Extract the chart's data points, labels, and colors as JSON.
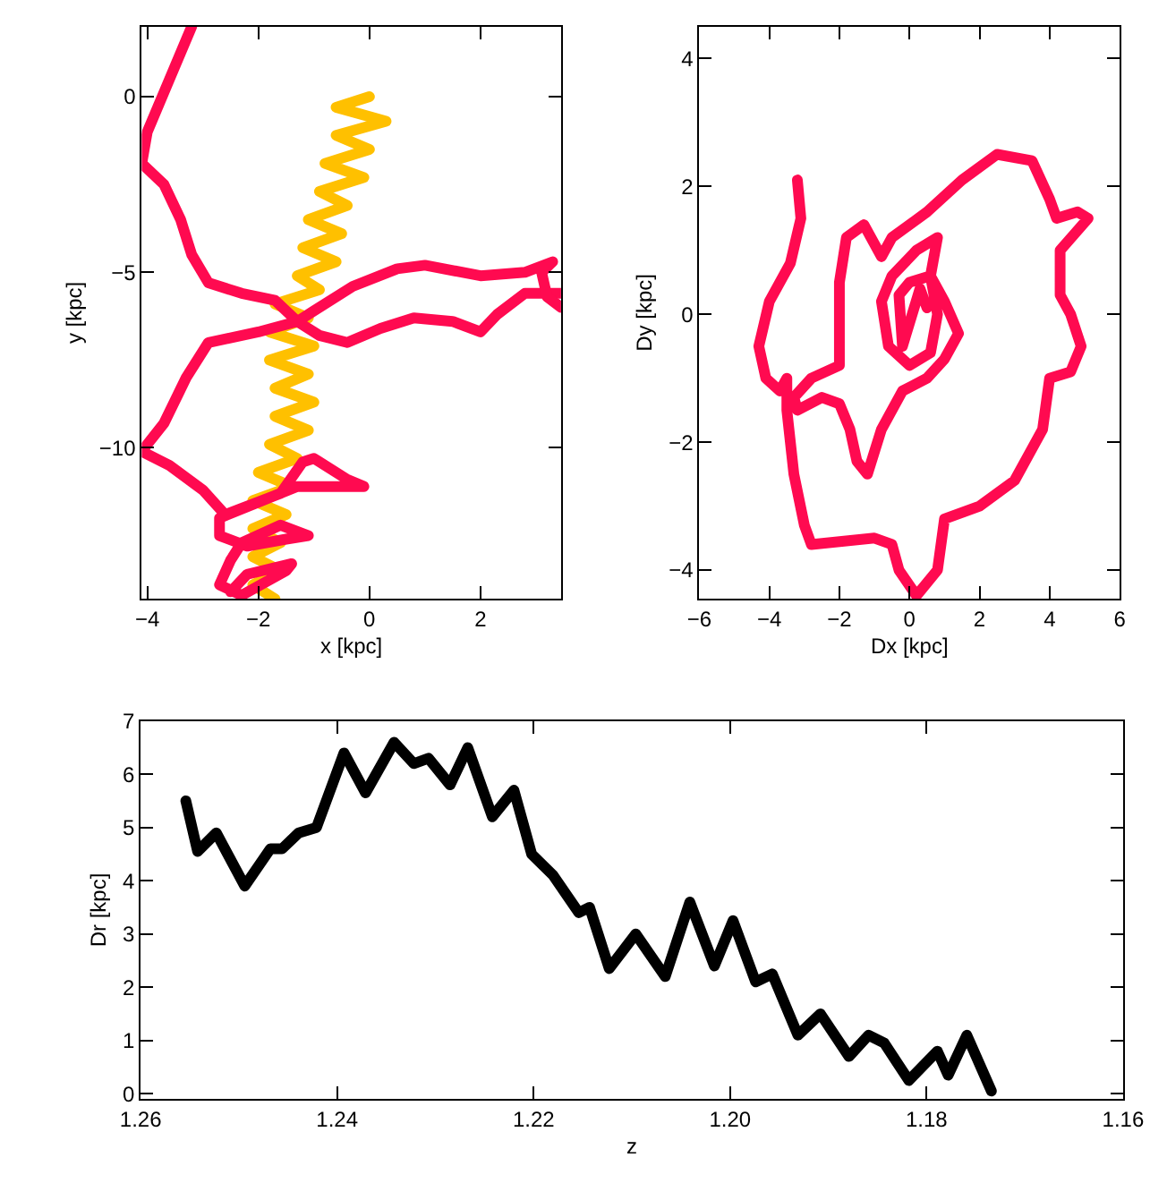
{
  "chart_data": [
    {
      "type": "line",
      "xlabel": "x [kpc]",
      "ylabel": "y [kpc]",
      "xlim": [
        -4.1,
        3.45
      ],
      "ylim": [
        -14.3,
        2.0
      ],
      "xticks": [
        -4,
        -2,
        0,
        2
      ],
      "yticks": [
        -10,
        -5,
        0
      ],
      "series": [
        {
          "color": "#ffc000",
          "x": [
            0.0,
            -0.6,
            0.3,
            -0.6,
            0.0,
            -0.8,
            -0.1,
            -0.9,
            -0.4,
            -1.1,
            -0.5,
            -1.2,
            -0.6,
            -1.3,
            -0.9,
            -1.7,
            -1.1,
            -1.8,
            -1.0,
            -1.8,
            -1.1,
            -1.7,
            -1.0,
            -1.7,
            -1.1,
            -1.8,
            -1.3,
            -2.0,
            -1.4,
            -2.1,
            -1.5,
            -2.1,
            -1.6,
            -2.1,
            -1.6,
            -2.1,
            -1.7
          ],
          "values": [
            0.0,
            -0.3,
            -0.7,
            -1.1,
            -1.5,
            -1.9,
            -2.3,
            -2.7,
            -3.1,
            -3.5,
            -3.9,
            -4.3,
            -4.7,
            -5.1,
            -5.5,
            -5.9,
            -6.3,
            -6.7,
            -7.1,
            -7.5,
            -7.9,
            -8.3,
            -8.7,
            -9.1,
            -9.5,
            -9.9,
            -10.3,
            -10.7,
            -11.1,
            -11.5,
            -11.9,
            -12.3,
            -12.7,
            -13.1,
            -13.5,
            -13.9,
            -14.3
          ]
        },
        {
          "color": "#ff0a50",
          "x": [
            -3.2,
            -3.6,
            -4.0,
            -4.1,
            -3.7,
            -3.4,
            -3.2,
            -2.9,
            -2.3,
            -1.7,
            -1.3,
            -0.9,
            -0.4,
            0.2,
            0.8,
            1.5,
            2.0,
            2.3,
            2.8,
            3.45,
            null,
            3.45,
            3.2,
            3.1,
            3.3,
            2.8,
            2.0,
            1.0,
            0.5,
            -0.3,
            -1.0,
            -1.3,
            -2.0,
            -2.9,
            -3.3,
            -3.7,
            -4.1,
            -3.6,
            -3.0,
            -2.6,
            -1.6,
            -1.2,
            -1.0,
            -0.4,
            -0.1,
            -1.3,
            -2.7,
            -2.7,
            -2.2,
            -1.5,
            -1.1,
            -1.6,
            -2.3,
            -2.5,
            -2.7,
            -2.3,
            -1.5,
            -1.4,
            -2.2,
            -2.5
          ],
          "values": [
            2.0,
            0.5,
            -1.0,
            -1.9,
            -2.5,
            -3.5,
            -4.5,
            -5.3,
            -5.6,
            -5.8,
            -6.4,
            -6.8,
            -7.0,
            -6.6,
            -6.3,
            -6.4,
            -6.7,
            -6.2,
            -5.6,
            -5.6,
            null,
            -6.0,
            -5.7,
            -5.0,
            -4.7,
            -5.0,
            -5.1,
            -4.8,
            -4.9,
            -5.4,
            -6.1,
            -6.4,
            -6.7,
            -7.0,
            -8.0,
            -9.3,
            -10.1,
            -10.5,
            -11.2,
            -11.9,
            -11.3,
            -10.4,
            -10.3,
            -10.9,
            -11.1,
            -11.1,
            -12.0,
            -12.5,
            -12.8,
            -12.6,
            -12.5,
            -12.2,
            -12.7,
            -13.2,
            -13.9,
            -14.2,
            -13.5,
            -13.3,
            -13.6,
            -14.1
          ]
        }
      ]
    },
    {
      "type": "line",
      "xlabel": "Dx [kpc]",
      "ylabel": "Dy [kpc]",
      "xlim": [
        -6,
        6
      ],
      "ylim": [
        -4.45,
        4.5
      ],
      "xticks": [
        -6,
        -4,
        -2,
        0,
        2,
        4,
        6
      ],
      "yticks": [
        -4,
        -2,
        0,
        2,
        4
      ],
      "series": [
        {
          "color": "#ff0a50",
          "x": [
            -3.2,
            -3.1,
            -3.4,
            -4.0,
            -4.3,
            -4.1,
            -3.7,
            -3.5,
            -3.5,
            -3.3,
            -3.0,
            -2.8,
            -1.0,
            -0.5,
            -0.3,
            0.2,
            0.8,
            1.0,
            2.0,
            3.0,
            3.8,
            4.0,
            4.6,
            4.9,
            4.6,
            4.3,
            4.3,
            5.1,
            4.8,
            4.2,
            4.0,
            3.5,
            2.5,
            1.5,
            0.5,
            -0.5,
            -0.8,
            -1.3,
            -1.8,
            -2.0,
            -2.0,
            -2.0,
            -2.8,
            -3.3,
            -3.2,
            -2.5,
            -2.0,
            -1.7,
            -1.5,
            -1.2,
            -0.8,
            -0.2,
            0.5,
            1.0,
            1.4,
            1.0,
            0.6,
            0.8,
            0.2,
            -0.5,
            -0.8,
            -0.6,
            0.0,
            0.6,
            0.8,
            0.6,
            0.0,
            -0.3,
            -0.2,
            0.3,
            0.5
          ],
          "values": [
            2.1,
            1.5,
            0.8,
            0.2,
            -0.5,
            -1.0,
            -1.2,
            -1.0,
            -1.5,
            -2.5,
            -3.3,
            -3.6,
            -3.5,
            -3.6,
            -4.0,
            -4.4,
            -4.0,
            -3.2,
            -3.0,
            -2.6,
            -1.8,
            -1.0,
            -0.9,
            -0.5,
            0.0,
            0.3,
            1.0,
            1.5,
            1.6,
            1.5,
            1.8,
            2.4,
            2.5,
            2.1,
            1.6,
            1.2,
            0.9,
            1.4,
            1.2,
            0.5,
            -0.3,
            -0.8,
            -1.0,
            -1.3,
            -1.5,
            -1.3,
            -1.4,
            -1.8,
            -2.3,
            -2.5,
            -1.8,
            -1.2,
            -1.0,
            -0.7,
            -0.3,
            0.2,
            0.6,
            1.2,
            1.0,
            0.6,
            0.2,
            -0.5,
            -0.8,
            -0.6,
            0.0,
            0.6,
            0.5,
            0.3,
            -0.5,
            0.4,
            0.1
          ]
        }
      ]
    },
    {
      "type": "line",
      "xlabel": "z",
      "ylabel": "Dr [kpc]",
      "xlim": [
        1.26,
        1.16
      ],
      "ylim": [
        -0.1,
        7
      ],
      "xticks": [
        {
          "value": 1.26,
          "label": "1.26"
        },
        {
          "value": 1.24,
          "label": "1.24"
        },
        {
          "value": 1.22,
          "label": "1.22"
        },
        {
          "value": 1.2,
          "label": "1.20"
        },
        {
          "value": 1.18,
          "label": "1.18"
        },
        {
          "value": 1.16,
          "label": "1.16"
        }
      ],
      "yticks": [
        0,
        1,
        2,
        3,
        4,
        5,
        6,
        7
      ],
      "series": [
        {
          "color": "#000000",
          "x": [
            1.2554,
            1.2542,
            1.2523,
            1.2494,
            1.2468,
            1.2456,
            1.2439,
            1.2421,
            1.2393,
            1.2371,
            1.2342,
            1.2322,
            1.2307,
            1.2285,
            1.2267,
            1.2242,
            1.222,
            1.2202,
            1.218,
            1.2154,
            1.2143,
            1.2123,
            1.2096,
            1.2066,
            1.2041,
            1.2016,
            1.1997,
            1.1974,
            1.1957,
            1.1931,
            1.1908,
            1.1879,
            1.1859,
            1.1843,
            1.1818,
            1.1789,
            1.1778,
            1.1759,
            1.1734
          ],
          "values": [
            5.5,
            4.55,
            4.9,
            3.9,
            4.6,
            4.6,
            4.9,
            5.0,
            6.4,
            5.65,
            6.6,
            6.2,
            6.3,
            5.8,
            6.5,
            5.2,
            5.7,
            4.5,
            4.1,
            3.4,
            3.5,
            2.35,
            3.0,
            2.2,
            3.6,
            2.4,
            3.25,
            2.1,
            2.25,
            1.1,
            1.5,
            0.7,
            1.1,
            0.95,
            0.25,
            0.8,
            0.35,
            1.1,
            0.05
          ]
        }
      ]
    }
  ]
}
